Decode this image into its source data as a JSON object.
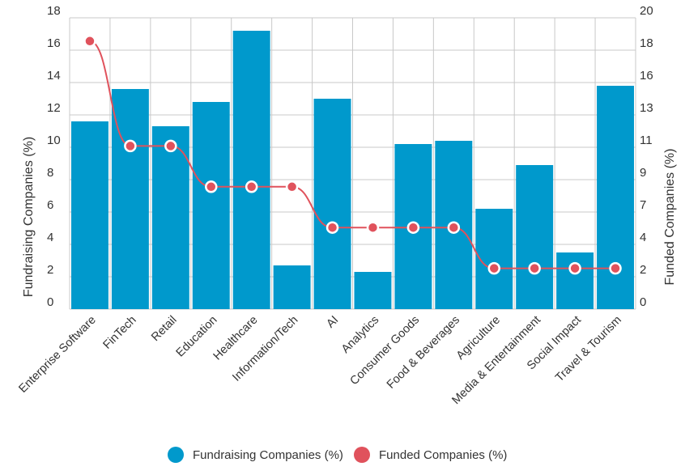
{
  "chart_data": {
    "type": "bar+line",
    "categories": [
      "Enterprise Software",
      "FinTech",
      "Retail",
      "Education",
      "Healthcare",
      "Information/Tech",
      "AI",
      "Analytics",
      "Consumer Goods",
      "Food & Beverages",
      "Agriculture",
      "Media & Entertainment",
      "Social Impact",
      "Travel & Tourism"
    ],
    "series": [
      {
        "name": "Fundraising Companies (%)",
        "type": "bar",
        "axis": "left",
        "color": "#0099cc",
        "values": [
          11.6,
          13.6,
          11.3,
          12.8,
          17.2,
          2.7,
          13.0,
          2.3,
          10.2,
          10.4,
          6.2,
          8.9,
          3.5,
          13.8
        ]
      },
      {
        "name": "Funded Companies (%)",
        "type": "line",
        "axis": "right",
        "color": "#e0525c",
        "values": [
          18.4,
          11.2,
          11.2,
          8.4,
          8.4,
          8.4,
          5.6,
          5.6,
          5.6,
          5.6,
          2.8,
          2.8,
          2.8,
          2.8
        ]
      }
    ],
    "yleft": {
      "label": "Fundraising Companies (%)",
      "ticks": [
        "0",
        "2",
        "4",
        "6",
        "8",
        "10",
        "12",
        "14",
        "16",
        "18"
      ],
      "lim": [
        0,
        18
      ]
    },
    "yright": {
      "label": "Funded Companies (%)",
      "ticks": [
        "0",
        "2",
        "4",
        "7",
        "9",
        "11",
        "13",
        "16",
        "18",
        "20"
      ],
      "lim": [
        0,
        20
      ]
    },
    "grid": true,
    "legend": "bottom-center"
  }
}
